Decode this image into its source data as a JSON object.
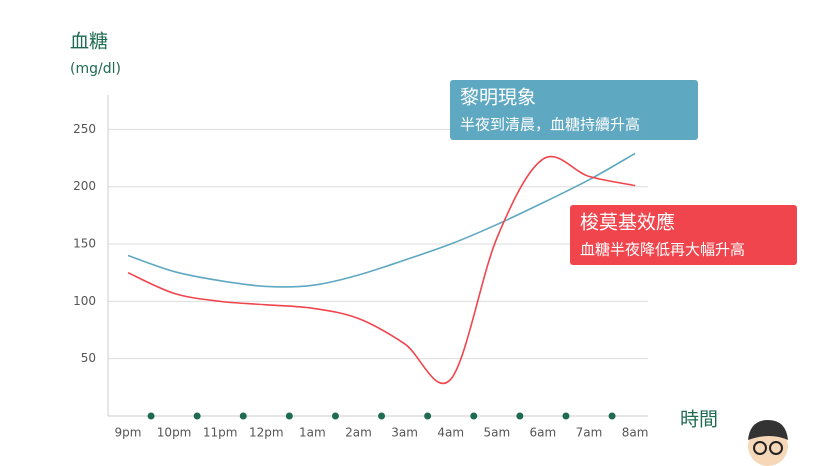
{
  "chart_data": {
    "type": "line",
    "y_label": "血糖",
    "y_unit": "(mg/dl)",
    "x_label": "時間",
    "categories": [
      "9pm",
      "10pm",
      "11pm",
      "12pm",
      "1am",
      "2am",
      "3am",
      "4am",
      "5am",
      "6am",
      "7am",
      "8am"
    ],
    "ylim": [
      0,
      280
    ],
    "yticks": [
      50,
      100,
      150,
      200,
      250
    ],
    "grid": true,
    "series": [
      {
        "name": "黎明現象",
        "note": "半夜到清晨，血糖持續升高",
        "color": "#5fa8c2",
        "values": [
          140,
          126,
          118,
          113,
          114,
          123,
          136,
          150,
          167,
          186,
          206,
          229
        ]
      },
      {
        "name": "梭莫基效應",
        "note": "血糖半夜降低再大幅升高",
        "color": "#f0454d",
        "values": [
          125,
          107,
          100,
          97,
          94,
          85,
          63,
          32,
          155,
          224,
          209,
          201
        ]
      }
    ]
  }
}
